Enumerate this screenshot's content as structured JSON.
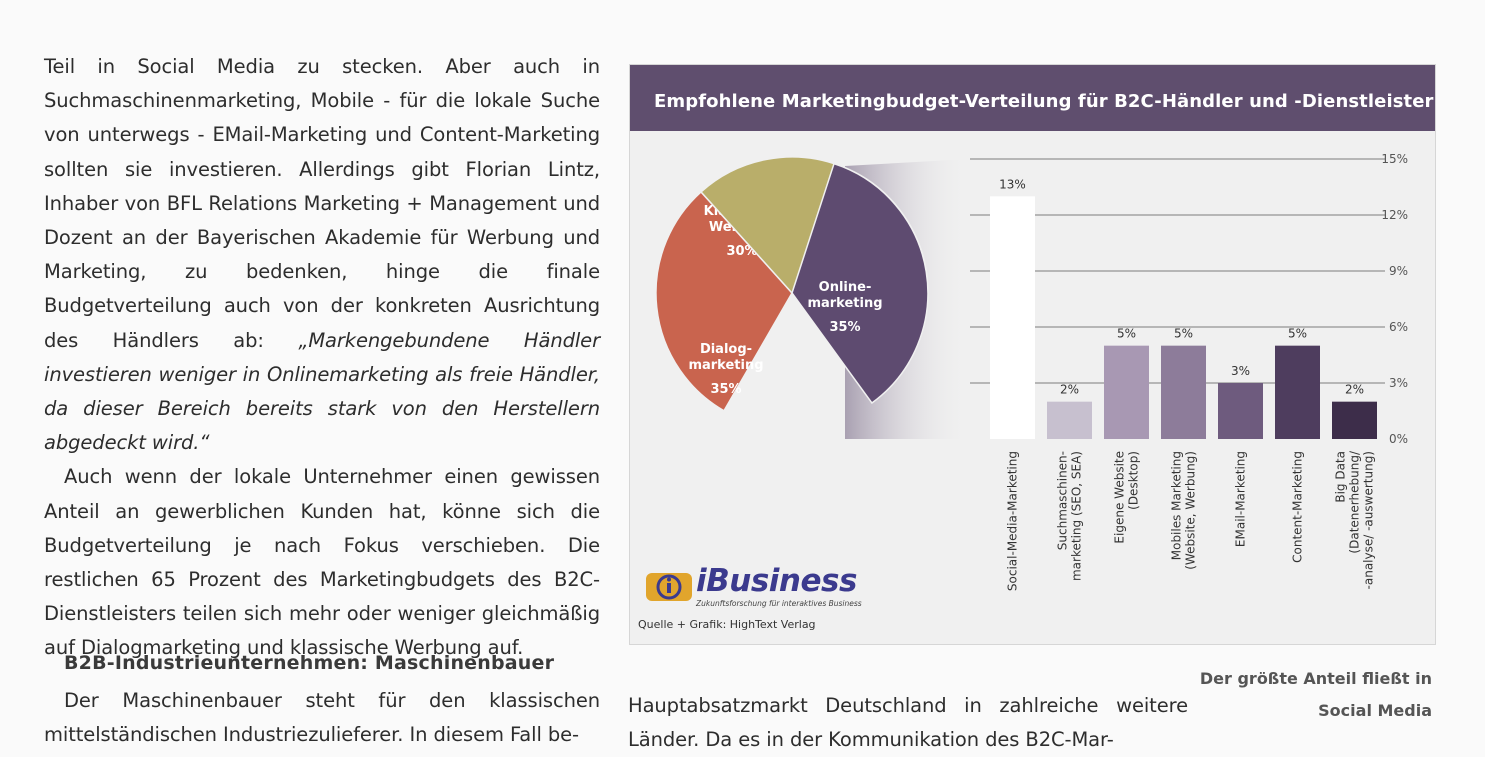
{
  "article": {
    "p1": "Teil in Social Media zu stecken. Aber auch in Suchmaschinenmarketing, Mobile - für die lokale Suche von unterwegs - EMail-Marketing und Content-Marketing sollten sie investieren. Allerdings gibt Florian Lintz, Inhaber von BFL Relations Marketing + Management und Dozent an der Bayerischen Akademie für Werbung und Marketing, zu bedenken, hinge die finale Budgetverteilung auch von der konkreten Ausrichtung des Händlers ab: ",
    "quote": "„Markengebundene Händler investieren weniger in Onlinemarketing als freie Händler, da dieser Bereich bereits stark von den Herstellern abgedeckt wird.“",
    "p2": "Auch wenn der lokale Unternehmer einen gewissen Anteil an gewerblichen Kunden hat, könne sich die Budgetverteilung je nach Fokus verschieben. Die restlichen 65 Prozent des Marketingbudgets des B2C-Dienstleisters teilen sich mehr oder weniger gleichmäßig auf Dialogmarketing und klassische Werbung auf.",
    "subheading": "B2B-Industrieunternehmen: Maschinenbauer",
    "p3": "Der Maschinenbauer steht für den klassischen mittelständischen Industriezulieferer. In diesem Fall be-",
    "p4": "Hauptabsatzmarkt Deutschland in zahlreiche weitere Länder. Da es in der Kommunikation des B2C-Mar-",
    "caption": "Der größte Anteil fließt in Social Media"
  },
  "figure": {
    "title": "Empfohlene Marketingbudget-Verteilung für B2C-Händler und -Dienstleister",
    "logo_text": "iBusiness",
    "logo_tagline": "Zukunftsforschung für interaktives Business",
    "source": "Quelle + Grafik: HighText Verlag"
  },
  "chart_data": [
    {
      "type": "pie",
      "slices": [
        {
          "label": "Klassische Werbung",
          "value": 30,
          "display": "30%",
          "color": "#c9644e"
        },
        {
          "label": "Dialog- marketing",
          "value": 35,
          "display": "35%",
          "color": "#b9ae6a"
        },
        {
          "label": "Online- marketing",
          "value": 35,
          "display": "35%",
          "color": "#5e4b70"
        }
      ]
    },
    {
      "type": "bar",
      "categories": [
        "Social-Media-Marketing",
        "Suchmaschinen- marketing (SEO, SEA)",
        "Eigene Website (Desktop)",
        "Mobiles Marketing (Website, Werbung)",
        "EMail-Marketing",
        "Content-Marketing",
        "Big Data (Datenerhebung/ -analyse/ -auswertung)"
      ],
      "values": [
        13,
        2,
        5,
        5,
        3,
        5,
        2
      ],
      "value_labels": [
        "13%",
        "2%",
        "5%",
        "5%",
        "3%",
        "5%",
        "2%"
      ],
      "colors": [
        "#ffffff",
        "#c7c0cf",
        "#a898b3",
        "#8d7c9a",
        "#6e5b7e",
        "#4e3d5e",
        "#3d2d4a"
      ],
      "ylim": [
        0,
        15
      ],
      "yticks": [
        "0%",
        "3%",
        "6%",
        "9%",
        "12%",
        "15%"
      ],
      "ytick_values": [
        0,
        3,
        6,
        9,
        12,
        15
      ],
      "grid": true
    }
  ]
}
